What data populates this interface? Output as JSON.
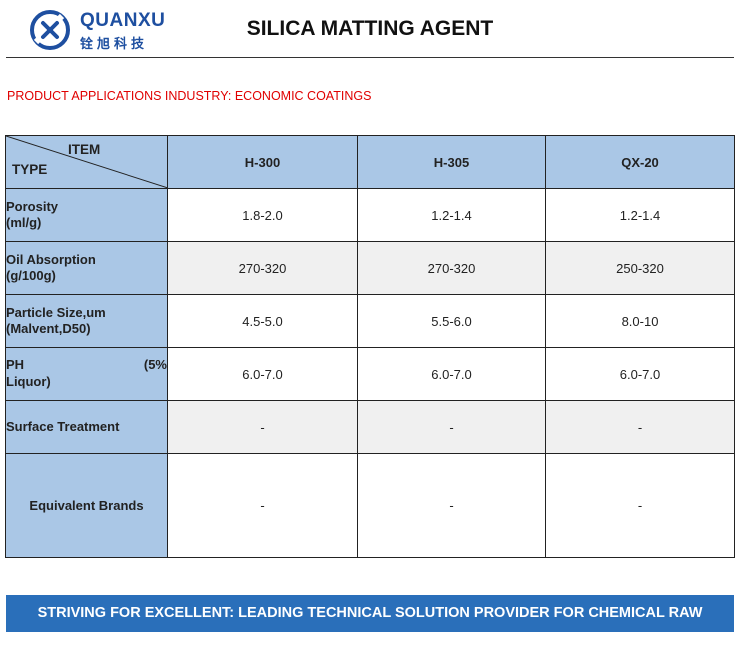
{
  "header": {
    "brand_name": "QUANXU",
    "brand_sub": "铨旭科技",
    "title": "SILICA MATTING AGENT",
    "colors": {
      "brand": "#1e4fa0",
      "header_fill": "#aac7e6",
      "footer": "#2a6fba",
      "apps_text": "#e00000"
    }
  },
  "applications": "PRODUCT APPLICATIONS INDUSTRY:  ECONOMIC COATINGS",
  "table": {
    "corner_item": "ITEM",
    "corner_type": "TYPE",
    "columns": [
      "H-300",
      "H-305",
      "QX-20"
    ],
    "rows": [
      {
        "label_line1": "Porosity",
        "label_line2": "(ml/g)",
        "values": [
          "1.8-2.0",
          "1.2-1.4",
          "1.2-1.4"
        ]
      },
      {
        "label_line1": "Oil Absorption",
        "label_line2": "(g/100g)",
        "values": [
          "270-320",
          "270-320",
          "250-320"
        ]
      },
      {
        "label_line1": "Particle Size,um",
        "label_line2": "(Malvent,D50)",
        "values": [
          "4.5-5.0",
          "5.5-6.0",
          "8.0-10"
        ]
      },
      {
        "label_line1": "PH",
        "label_line1_right": "(5%",
        "label_line2": "Liquor)",
        "values": [
          "6.0-7.0",
          "6.0-7.0",
          "6.0-7.0"
        ]
      },
      {
        "label_line1": "Surface Treatment",
        "values": [
          "-",
          "-",
          "-"
        ]
      },
      {
        "label_line1": "Equivalent Brands",
        "values": [
          "-",
          "-",
          "-"
        ]
      }
    ]
  },
  "footer": "STRIVING FOR EXCELLENT: LEADING TECHNICAL SOLUTION PROVIDER FOR CHEMICAL RAW MATERIAL",
  "logo_icon": "quanxu-logo-icon"
}
